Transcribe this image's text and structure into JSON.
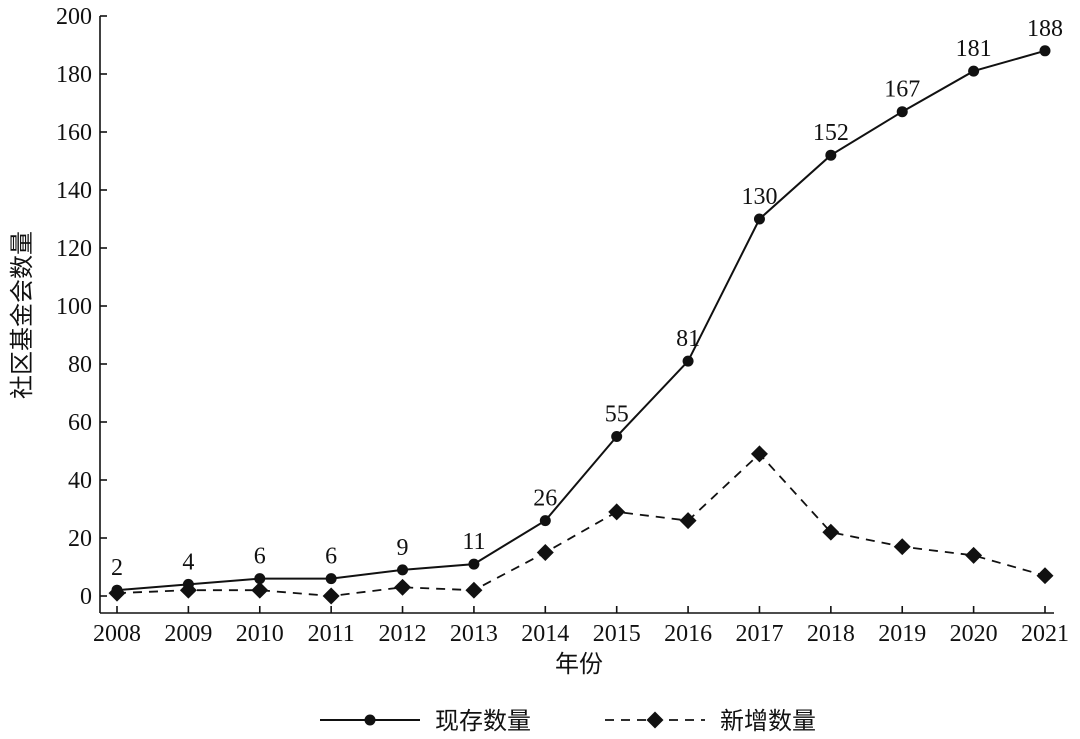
{
  "chart_data": {
    "type": "line",
    "xlabel": "年份",
    "ylabel": "社区基金会数量",
    "ylim": [
      0,
      200
    ],
    "yticks": [
      0,
      20,
      40,
      60,
      80,
      100,
      120,
      140,
      160,
      180,
      200
    ],
    "categories": [
      "2008",
      "2009",
      "2010",
      "2011",
      "2012",
      "2013",
      "2014",
      "2015",
      "2016",
      "2017",
      "2018",
      "2019",
      "2020",
      "2021"
    ],
    "legend_position": "bottom",
    "grid": false,
    "series": [
      {
        "name": "现存数量",
        "line_style": "solid",
        "marker": "circle",
        "values": [
          2,
          4,
          6,
          6,
          9,
          11,
          26,
          55,
          81,
          130,
          152,
          167,
          181,
          188
        ],
        "data_labels": [
          "2",
          "4",
          "6",
          "6",
          "9",
          "11",
          "26",
          "55",
          "81",
          "130",
          "152",
          "167",
          "181",
          "188"
        ]
      },
      {
        "name": "新增数量",
        "line_style": "dashed",
        "marker": "diamond",
        "values": [
          1,
          2,
          2,
          0,
          3,
          2,
          15,
          29,
          26,
          49,
          22,
          17,
          14,
          7
        ]
      }
    ]
  }
}
